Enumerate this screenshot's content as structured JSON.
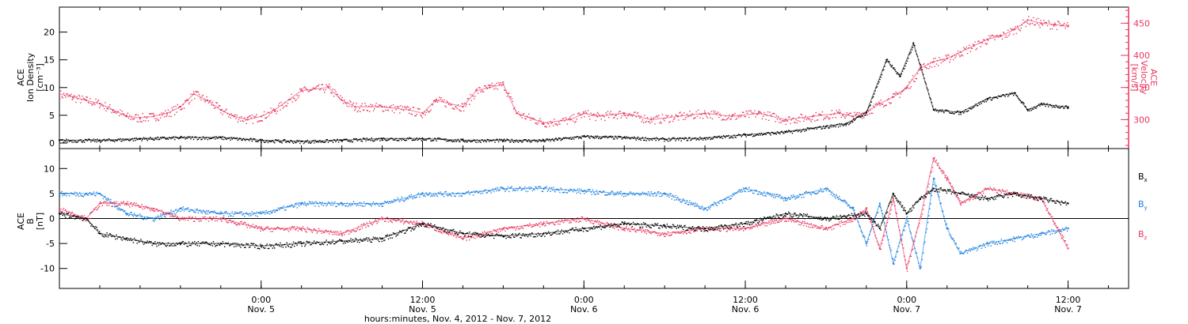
{
  "colors": {
    "axis": "#000000",
    "velocity": "#e8365f",
    "density": "#000000",
    "bx": "#000000",
    "by": "#1a7fe0",
    "bz": "#e8365f"
  },
  "x_axis": {
    "title": "hours:minutes, Nov. 4, 2012 - Nov. 7, 2012",
    "range_hours": [
      0,
      79.5
    ],
    "ticks": [
      {
        "hour": 15.0,
        "time": "0:00",
        "date": "Nov. 5"
      },
      {
        "hour": 27.0,
        "time": "12:00",
        "date": "Nov. 5"
      },
      {
        "hour": 39.0,
        "time": "0:00",
        "date": "Nov. 6"
      },
      {
        "hour": 51.0,
        "time": "12:00",
        "date": "Nov. 6"
      },
      {
        "hour": 63.0,
        "time": "0:00",
        "date": "Nov. 7"
      },
      {
        "hour": 75.0,
        "time": "12:00",
        "date": "Nov. 7"
      }
    ]
  },
  "chart_data": [
    {
      "type": "scatter",
      "panel": "top",
      "ylabel_left": [
        "ACE",
        "Ion Density",
        "[cm⁻³]"
      ],
      "ylabel_right": [
        "ACE",
        "Velocity",
        "[km/s]"
      ],
      "ylim_left": [
        -1,
        24.5
      ],
      "ylim_right": [
        255,
        475
      ],
      "yticks_left": [
        0,
        5,
        10,
        15,
        20
      ],
      "yticks_right": [
        300,
        350,
        400,
        450
      ],
      "series": [
        {
          "name": "Ion Density",
          "axis": "left",
          "color_key": "density",
          "x": [
            0,
            3,
            6,
            9,
            12,
            15,
            18,
            21,
            24,
            27,
            30,
            33,
            36,
            39,
            42,
            45,
            48,
            51,
            54,
            57,
            58.5,
            60,
            61.5,
            62.5,
            63.5,
            65,
            67,
            69,
            71,
            72,
            73,
            75
          ],
          "y": [
            0.5,
            0.5,
            0.8,
            1.0,
            1.0,
            0.5,
            0.3,
            0.5,
            0.8,
            0.8,
            0.5,
            0.5,
            0.5,
            1.2,
            1.0,
            0.7,
            0.9,
            1.5,
            2.0,
            3.0,
            3.5,
            5.5,
            15.0,
            12.0,
            18.0,
            6.0,
            5.5,
            8.0,
            9.0,
            6.0,
            7.0,
            6.5
          ]
        },
        {
          "name": "Velocity",
          "axis": "right",
          "color_key": "velocity",
          "x": [
            0,
            1,
            2,
            3,
            4,
            5,
            6,
            7,
            8,
            9,
            10,
            11,
            12,
            13,
            14,
            15,
            16,
            18,
            20,
            21,
            22,
            24,
            26,
            27,
            28,
            30,
            31,
            32,
            33,
            34,
            36,
            38,
            39,
            40,
            42,
            44,
            46,
            48,
            50,
            52,
            54,
            56,
            58,
            59,
            60,
            61,
            62,
            63,
            64,
            65,
            66,
            67,
            68,
            69,
            70,
            71,
            72,
            73,
            74,
            75
          ],
          "y": [
            340,
            335,
            330,
            325,
            315,
            305,
            303,
            305,
            310,
            320,
            340,
            330,
            315,
            305,
            300,
            305,
            315,
            345,
            350,
            330,
            320,
            320,
            315,
            310,
            330,
            320,
            345,
            350,
            355,
            310,
            295,
            300,
            310,
            305,
            310,
            300,
            305,
            310,
            305,
            310,
            300,
            305,
            310,
            305,
            312,
            325,
            335,
            350,
            380,
            390,
            395,
            405,
            415,
            425,
            430,
            440,
            455,
            450,
            448,
            445
          ]
        }
      ]
    },
    {
      "type": "scatter",
      "panel": "bottom",
      "ylabel": [
        "ACE",
        "B",
        "[nT]"
      ],
      "ylim": [
        -14,
        14
      ],
      "yticks": [
        -10,
        -5,
        0,
        5,
        10
      ],
      "series": [
        {
          "name": "Bx",
          "color_key": "bx",
          "x": [
            0,
            2,
            3,
            5,
            7,
            9,
            12,
            15,
            18,
            21,
            24,
            27,
            30,
            33,
            36,
            39,
            42,
            45,
            48,
            51,
            54,
            57,
            60,
            61,
            62,
            63,
            64,
            65,
            67,
            69,
            71,
            73,
            75
          ],
          "y": [
            1,
            0,
            -3,
            -4,
            -5,
            -5,
            -5,
            -5.5,
            -5,
            -4.5,
            -4,
            -1,
            -3,
            -3.5,
            -3,
            -2,
            -1,
            -1.5,
            -2,
            -1,
            1,
            0,
            1,
            -2,
            5,
            1,
            4,
            6,
            5,
            4,
            5,
            4,
            3
          ]
        },
        {
          "name": "By",
          "color_key": "by",
          "x": [
            0,
            2,
            3,
            5,
            7,
            9,
            12,
            15,
            18,
            21,
            24,
            27,
            30,
            33,
            36,
            39,
            42,
            45,
            48,
            51,
            54,
            57,
            59,
            60,
            61,
            62,
            63,
            64,
            65,
            66,
            67,
            69,
            71,
            73,
            75
          ],
          "y": [
            5,
            5,
            5,
            1,
            0,
            2,
            1,
            1,
            3,
            3,
            3,
            5,
            5,
            6,
            6,
            5.5,
            5,
            5,
            2,
            6,
            4,
            6,
            2,
            -5,
            3,
            -9,
            0,
            -10,
            8,
            -2,
            -7,
            -5,
            -4,
            -3,
            -2
          ]
        },
        {
          "name": "Bz",
          "color_key": "bz",
          "x": [
            0,
            2,
            3,
            5,
            7,
            9,
            12,
            15,
            18,
            21,
            24,
            27,
            30,
            33,
            36,
            39,
            42,
            45,
            48,
            51,
            54,
            57,
            59,
            60,
            61,
            62,
            63,
            64,
            65,
            66,
            67,
            69,
            71,
            73,
            75
          ],
          "y": [
            2,
            0,
            3,
            3,
            2,
            0,
            0,
            -2,
            -2,
            -3,
            0,
            -1,
            -4,
            -2,
            -1,
            0,
            -2,
            -3,
            -2,
            -2,
            0,
            -2,
            0,
            2,
            -6,
            4,
            -10,
            0,
            12,
            8,
            3,
            6,
            5,
            4,
            -6
          ]
        }
      ]
    }
  ],
  "legend_labels": {
    "bx": "B",
    "bx_sub": "x",
    "by": "B",
    "by_sub": "y",
    "bz": "B",
    "bz_sub": "z"
  }
}
